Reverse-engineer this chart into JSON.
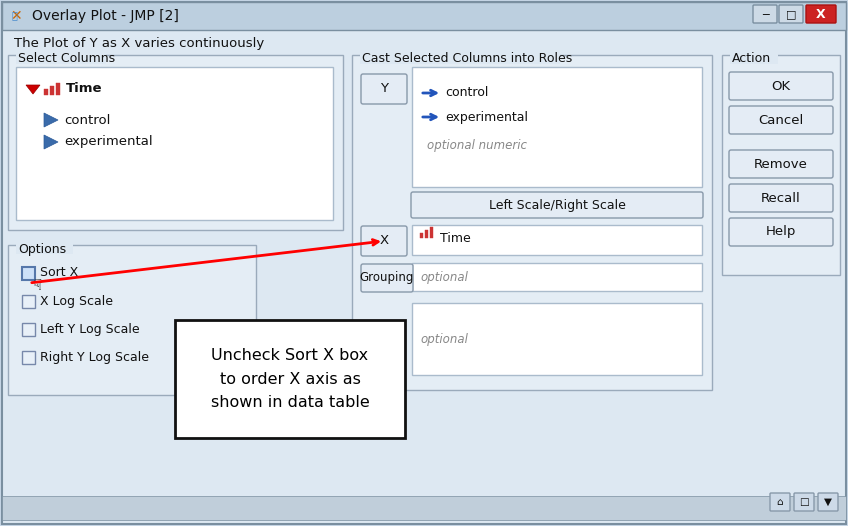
{
  "title": "Overlay Plot - JMP [2]",
  "subtitle": "The Plot of Y as X varies continuously",
  "bg_outer": "#c8d8e8",
  "bg_window": "#dde8f2",
  "bg_titlebar": "#b8cede",
  "bg_white": "#ffffff",
  "bg_panel": "#e4edf5",
  "bg_button": "#e0e8f0",
  "color_close": "#cc2222",
  "color_red_icon": "#cc3333",
  "color_blue_tri": "#3a6baa",
  "color_border": "#9aaabb",
  "color_text": "#111111",
  "color_gray_text": "#888888",
  "color_arrow": "#2255bb",
  "select_columns_label": "Select Columns",
  "cast_roles_label": "Cast Selected Columns into Roles",
  "action_label": "Action",
  "options_label": "Options",
  "columns": [
    "Time",
    "control",
    "experimental"
  ],
  "y_items": [
    "← control",
    "← experimental",
    "optional numeric"
  ],
  "x_item": "Time",
  "grouping_item": "optional",
  "lower_optional": "optional",
  "action_buttons": [
    "OK",
    "Cancel",
    "Remove",
    "Recall",
    "Help"
  ],
  "options_items": [
    "Sort X",
    "X Log Scale",
    "Left Y Log Scale",
    "Right Y Log Scale"
  ],
  "annotation_text": "Uncheck Sort X box\nto order X axis as\nshown in data table",
  "fig_w": 8.48,
  "fig_h": 5.26,
  "dpi": 100
}
